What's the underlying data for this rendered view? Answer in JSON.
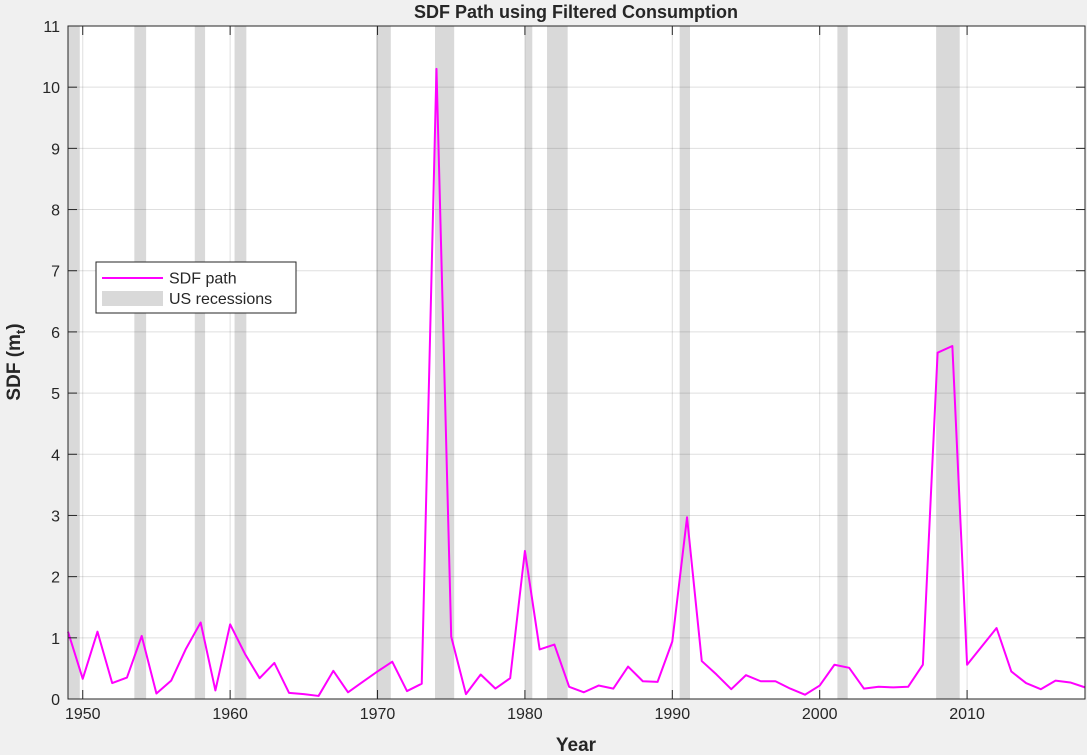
{
  "chart_data": {
    "type": "line",
    "title": "SDF Path using Filtered Consumption",
    "xlabel": "Year",
    "ylabel": "SDF  (m",
    "ylabel_subscript": "t",
    "ylabel_close": ")",
    "xlim": [
      1949,
      2018
    ],
    "ylim": [
      0,
      11
    ],
    "xticks": [
      1950,
      1960,
      1970,
      1980,
      1990,
      2000,
      2010
    ],
    "yticks": [
      0,
      1,
      2,
      3,
      4,
      5,
      6,
      7,
      8,
      9,
      10,
      11
    ],
    "grid": true,
    "legend_location": "left",
    "legend": [
      "SDF path",
      "US recessions"
    ],
    "series": [
      {
        "name": "SDF path",
        "color": "#ff00ff",
        "x": [
          1949,
          1950,
          1951,
          1952,
          1953,
          1954,
          1955,
          1956,
          1957,
          1958,
          1959,
          1960,
          1961,
          1962,
          1963,
          1964,
          1965,
          1966,
          1967,
          1968,
          1969,
          1970,
          1971,
          1972,
          1973,
          1974,
          1975,
          1976,
          1977,
          1978,
          1979,
          1980,
          1981,
          1982,
          1983,
          1984,
          1985,
          1986,
          1987,
          1988,
          1989,
          1990,
          1991,
          1992,
          1993,
          1994,
          1995,
          1996,
          1997,
          1998,
          1999,
          2000,
          2001,
          2002,
          2003,
          2004,
          2005,
          2006,
          2007,
          2008,
          2009,
          2010,
          2011,
          2012,
          2013,
          2014,
          2015,
          2016,
          2017,
          2018
        ],
        "y": [
          1.1,
          0.33,
          1.1,
          0.26,
          0.35,
          1.03,
          0.09,
          0.3,
          0.82,
          1.25,
          0.14,
          1.22,
          0.74,
          0.34,
          0.59,
          0.1,
          0.08,
          0.05,
          0.46,
          0.11,
          0.28,
          0.45,
          0.61,
          0.13,
          0.25,
          10.3,
          1.02,
          0.08,
          0.4,
          0.17,
          0.34,
          2.42,
          0.81,
          0.89,
          0.2,
          0.11,
          0.22,
          0.17,
          0.53,
          0.29,
          0.28,
          0.94,
          2.97,
          0.62,
          0.4,
          0.16,
          0.39,
          0.29,
          0.29,
          0.17,
          0.07,
          0.22,
          0.56,
          0.51,
          0.17,
          0.2,
          0.19,
          0.2,
          0.56,
          5.66,
          5.77,
          0.56,
          0.86,
          1.16,
          0.45,
          0.26,
          0.16,
          0.3,
          0.27,
          0.19
        ]
      },
      {
        "name": "US recessions",
        "color": "#d9d9d9",
        "intervals": [
          [
            1948.9,
            1949.8
          ],
          [
            1953.5,
            1954.3
          ],
          [
            1957.6,
            1958.3
          ],
          [
            1960.3,
            1961.1
          ],
          [
            1969.9,
            1970.9
          ],
          [
            1973.9,
            1975.2
          ],
          [
            1980.0,
            1980.5
          ],
          [
            1981.5,
            1982.9
          ],
          [
            1990.5,
            1991.2
          ],
          [
            2001.2,
            2001.9
          ],
          [
            2007.9,
            2009.5
          ]
        ]
      }
    ]
  }
}
